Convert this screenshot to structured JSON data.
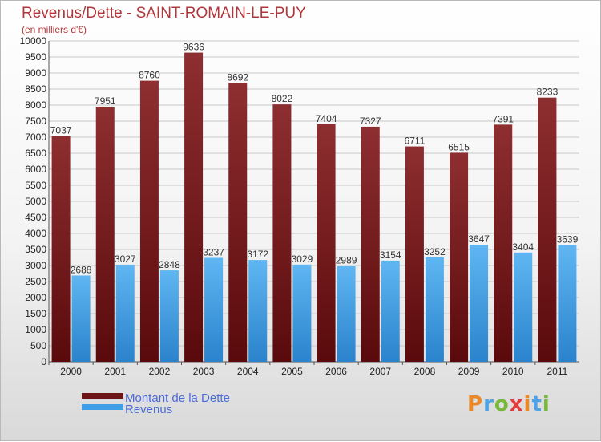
{
  "header": {
    "title": "Revenus/Dette - SAINT-ROMAIN-LE-PUY",
    "subtitle": "(en milliers d'€)"
  },
  "logo": {
    "text": "Proxiti"
  },
  "colors": {
    "dette": "#7a1c1e",
    "revenus": "#3f9ee6",
    "title": "#b0373b",
    "legend_text": "#4a6bd6",
    "grid": "#c8c8c8"
  },
  "chart_data": {
    "type": "bar",
    "title": "Revenus/Dette - SAINT-ROMAIN-LE-PUY",
    "subtitle": "(en milliers d'€)",
    "xlabel": "",
    "ylabel": "",
    "categories": [
      "2000",
      "2001",
      "2002",
      "2003",
      "2004",
      "2005",
      "2006",
      "2007",
      "2008",
      "2009",
      "2010",
      "2011"
    ],
    "series": [
      {
        "name": "Montant de la Dette",
        "values": [
          7037,
          7951,
          8760,
          9636,
          8692,
          8022,
          7404,
          7327,
          6711,
          6515,
          7391,
          8233
        ]
      },
      {
        "name": "Revenus",
        "values": [
          2688,
          3027,
          2848,
          3237,
          3172,
          3029,
          2989,
          3154,
          3252,
          3647,
          3404,
          3639
        ]
      }
    ],
    "ylim": [
      0,
      10000
    ],
    "yticks": [
      0,
      500,
      1000,
      1500,
      2000,
      2500,
      3000,
      3500,
      4000,
      4500,
      5000,
      5500,
      6000,
      6500,
      7000,
      7500,
      8000,
      8500,
      9000,
      9500,
      10000
    ],
    "grid": true,
    "legend": "bottom-left"
  }
}
